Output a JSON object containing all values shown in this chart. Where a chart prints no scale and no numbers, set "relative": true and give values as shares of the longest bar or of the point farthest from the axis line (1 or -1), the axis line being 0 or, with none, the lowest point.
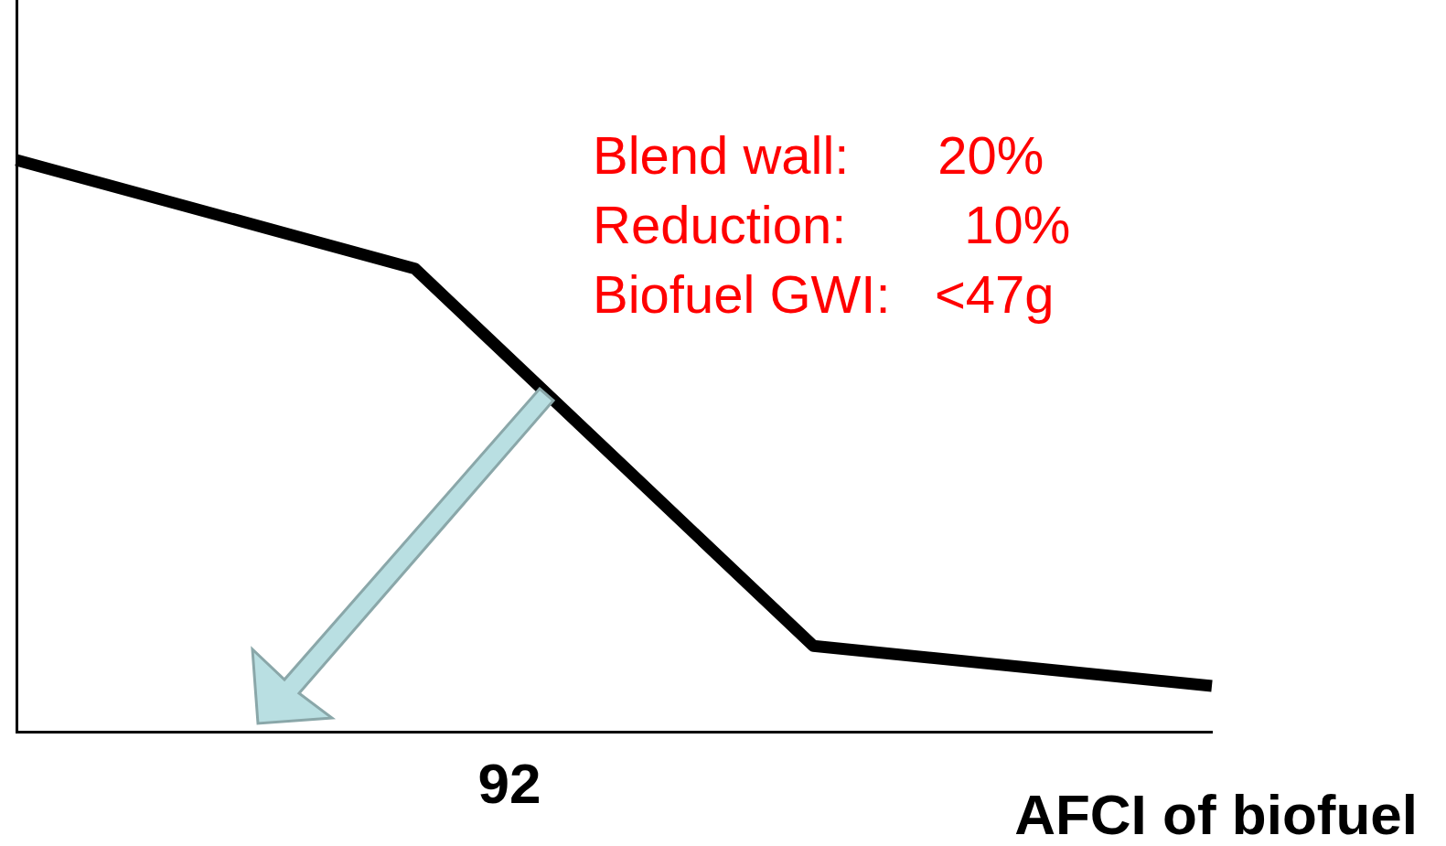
{
  "chart_data": {
    "type": "line",
    "relative": true,
    "xlabel": "AFCI of biofuel",
    "categories": [
      null,
      null,
      null,
      null
    ],
    "series": [
      {
        "color": "#000000",
        "values": [
          1,
          0.81,
          0.15,
          0.08
        ]
      }
    ],
    "marker": "none",
    "line_style": "solid",
    "grid": false,
    "legend": false,
    "annotations": [
      "Blend wall:      20%",
      "Reduction:        10%",
      "Biofuel GWI:   <47g",
      "92"
    ]
  }
}
